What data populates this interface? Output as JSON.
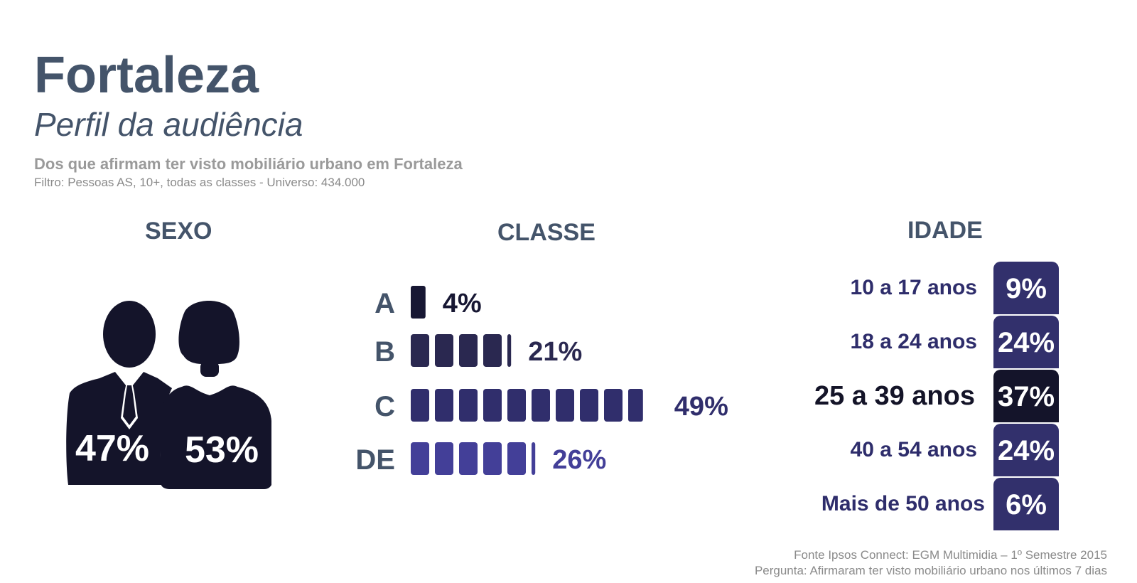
{
  "header": {
    "title": "Fortaleza",
    "subtitle": "Perfil da audiência",
    "description": "Dos que afirmam ter visto mobiliário urbano em Fortaleza",
    "filter": "Filtro: Pessoas AS, 10+, todas as classes - Universo: 434.000"
  },
  "sections": {
    "sexo": "SEXO",
    "classe": "CLASSE",
    "idade": "IDADE"
  },
  "colors": {
    "title": "#44546a",
    "dark": "#14142a",
    "navy": "#32306c",
    "classe_A": "#171733",
    "classe_B": "#2a2850",
    "classe_C": "#302e6c",
    "classe_DE": "#433f98"
  },
  "chart_data": [
    {
      "type": "pictogram",
      "title": "SEXO",
      "categories": [
        "Homens",
        "Mulheres"
      ],
      "labels": [
        "47%",
        "53%"
      ],
      "values": [
        47,
        53
      ],
      "icons": [
        "man-icon",
        "woman-icon"
      ]
    },
    {
      "type": "bar",
      "title": "CLASSE",
      "categories": [
        "A",
        "B",
        "C",
        "DE"
      ],
      "labels": [
        "4%",
        "21%",
        "49%",
        "26%"
      ],
      "values": [
        4,
        21,
        49,
        26
      ]
    },
    {
      "type": "table",
      "title": "IDADE",
      "categories": [
        "10 a 17 anos",
        "18 a 24 anos",
        "25 a 39 anos",
        "40 a 54 anos",
        "Mais de 50 anos"
      ],
      "labels": [
        "9%",
        "24%",
        "37%",
        "24%",
        "6%"
      ],
      "values": [
        9,
        24,
        37,
        24,
        6
      ],
      "highlight": "25 a 39 anos"
    }
  ],
  "footer": {
    "source": "Fonte Ipsos Connect: EGM Multimidia – 1º Semestre 2015",
    "question": "Pergunta: Afirmaram ter visto mobiliário urbano nos últimos 7 dias"
  }
}
